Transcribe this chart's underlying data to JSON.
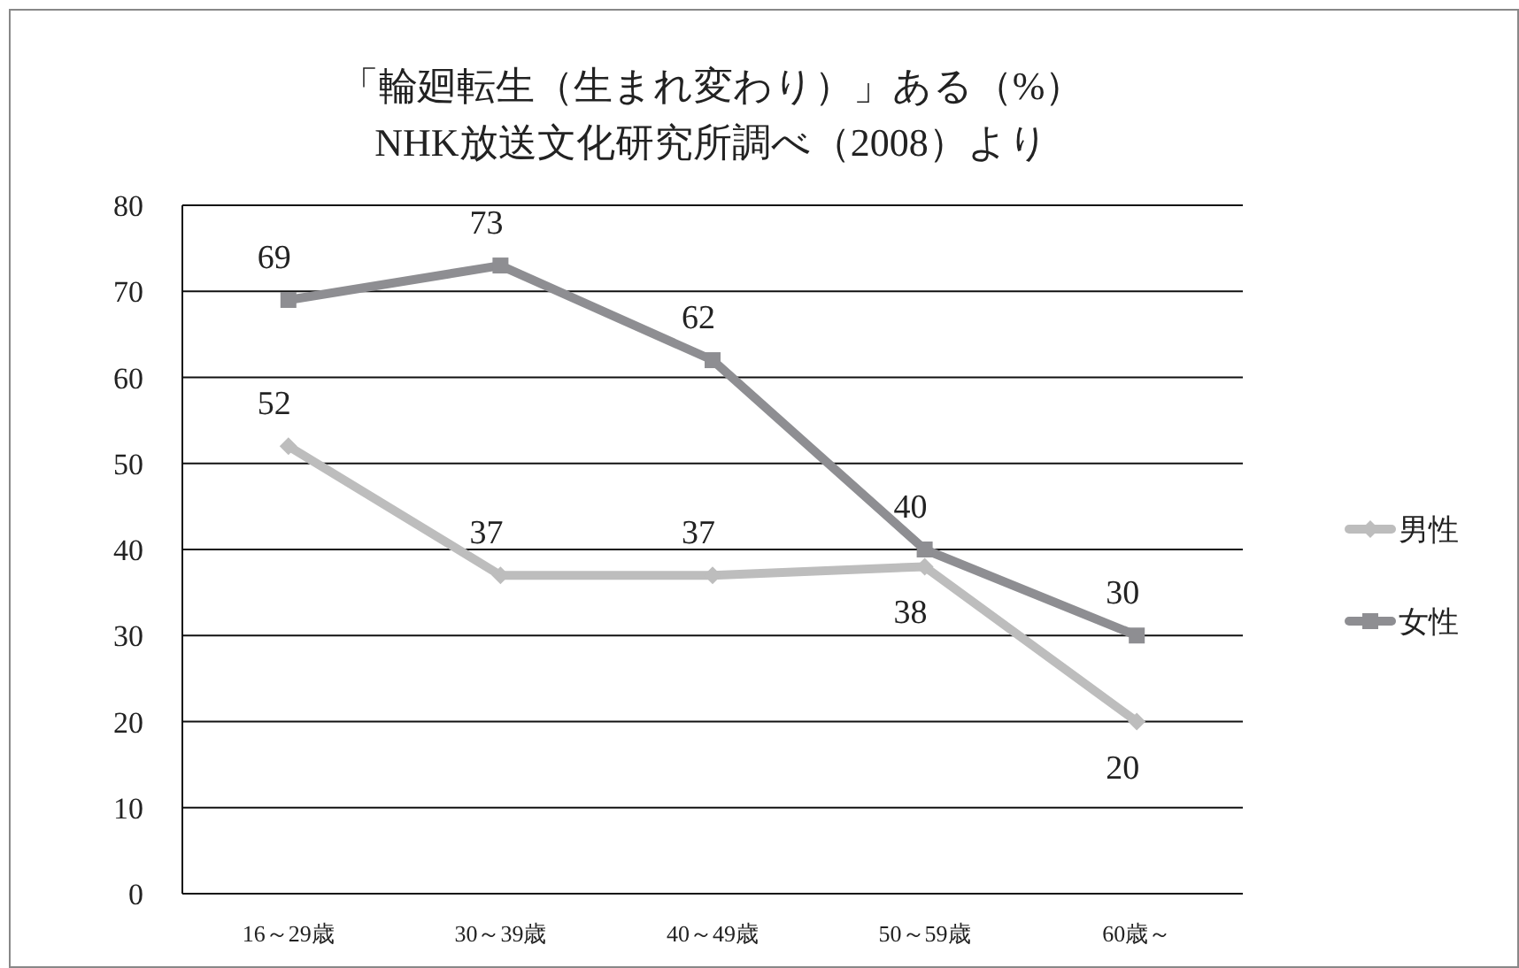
{
  "chart_data": {
    "type": "line",
    "title": "「輪廻転生（生まれ変わり）」ある（%）",
    "subtitle": "NHK放送文化研究所調べ（2008）より",
    "categories": [
      "16～29歳",
      "30～39歳",
      "40～49歳",
      "50～59歳",
      "60歳～"
    ],
    "series": [
      {
        "name": "男性",
        "color": "#bdbdbd",
        "marker": "diamond",
        "values": [
          52,
          37,
          37,
          38,
          20
        ]
      },
      {
        "name": "女性",
        "color": "#8e8e92",
        "marker": "square",
        "values": [
          69,
          73,
          62,
          40,
          30
        ]
      }
    ],
    "ylim": [
      0,
      80
    ],
    "yticks": [
      0,
      10,
      20,
      30,
      40,
      50,
      60,
      70,
      80
    ],
    "grid": "y",
    "legend": "right",
    "data_labels": true
  }
}
